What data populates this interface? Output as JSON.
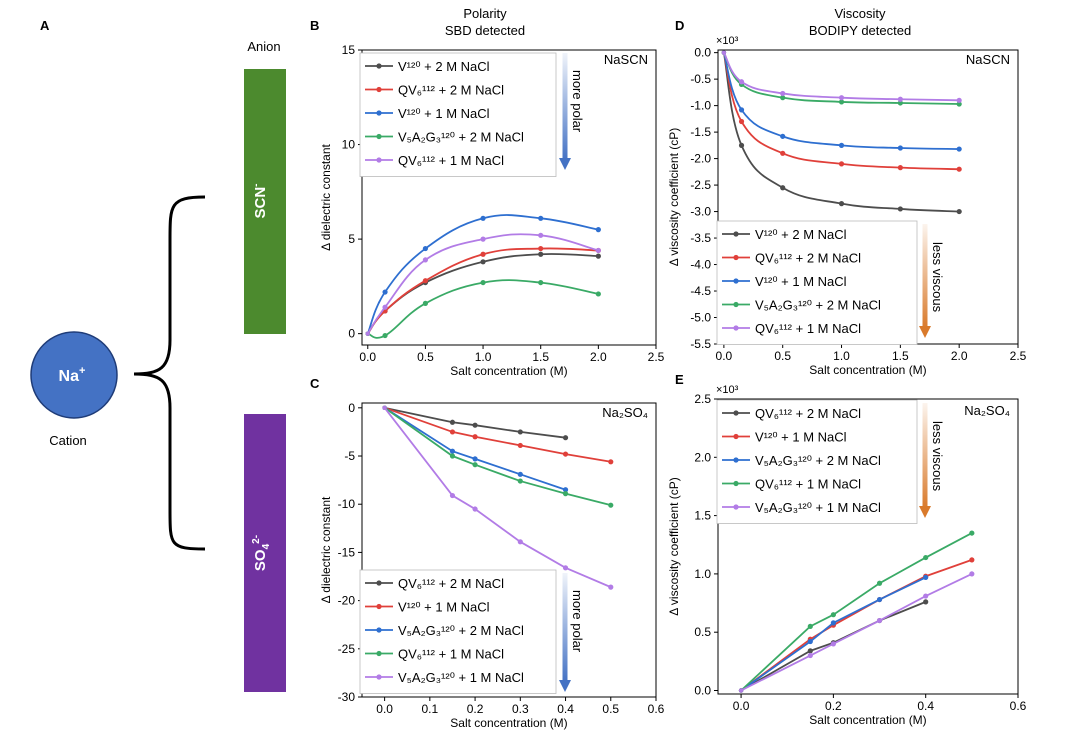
{
  "panel_a": {
    "letter": "A",
    "anion_heading": "Anion",
    "anion_top": "SCN",
    "anion_top_charge": "-",
    "anion_bottom": "SO",
    "anion_bottom_sub": "4",
    "anion_bottom_charge": "2-",
    "cation": "Na",
    "cation_charge": "+",
    "cation_label": "Cation",
    "colors": {
      "top_bar": "#4c8a2e",
      "bottom_bar": "#7032a0",
      "cation": "#4472c4"
    }
  },
  "column_titles": {
    "left": [
      "Polarity",
      "SBD detected"
    ],
    "right": [
      "Viscosity",
      "BODIPY detected"
    ]
  },
  "chart_data": [
    {
      "id": "B",
      "letter": "B",
      "type": "line",
      "smooth": true,
      "xlabel": "Salt concentration (M)",
      "ylabel": "Δ dielectric constant",
      "xlim": [
        -0.05,
        2.5
      ],
      "ylim": [
        -0.6,
        15
      ],
      "xticks": [
        0.0,
        0.5,
        1.0,
        1.5,
        2.0,
        2.5
      ],
      "xtick_labels": [
        "0.0",
        "0.5",
        "1.0",
        "1.5",
        "2.0",
        "2.5"
      ],
      "yticks": [
        0,
        5,
        10,
        15
      ],
      "ytick_labels": [
        "0",
        "5",
        "10",
        "15"
      ],
      "grid": false,
      "annotation": "NaSCN",
      "legend_placement": "top-left",
      "arrow": {
        "label": "more polar",
        "color": "#4472c4"
      },
      "series": [
        {
          "name": "V¹²⁰ + 2 M NaCl",
          "color": "#4d4d4d",
          "x": [
            0,
            0.15,
            0.5,
            1.0,
            1.5,
            2.0
          ],
          "y": [
            0,
            1.2,
            2.7,
            3.8,
            4.2,
            4.1
          ]
        },
        {
          "name": "QV₆¹¹² + 2 M NaCl",
          "color": "#e0403a",
          "x": [
            0,
            0.15,
            0.5,
            1.0,
            1.5,
            2.0
          ],
          "y": [
            0,
            1.2,
            2.8,
            4.2,
            4.5,
            4.4
          ]
        },
        {
          "name": "V¹²⁰ + 1 M NaCl",
          "color": "#2e6fd0",
          "x": [
            0,
            0.15,
            0.5,
            1.0,
            1.5,
            2.0
          ],
          "y": [
            0,
            2.2,
            4.5,
            6.1,
            6.1,
            5.5
          ]
        },
        {
          "name": "V₅A₂G₃¹²⁰ + 2 M NaCl",
          "color": "#3aaa66",
          "x": [
            0,
            0.15,
            0.5,
            1.0,
            1.5,
            2.0
          ],
          "y": [
            0,
            -0.1,
            1.6,
            2.7,
            2.7,
            2.1
          ]
        },
        {
          "name": "QV₆¹¹² + 1 M NaCl",
          "color": "#b27ce6",
          "x": [
            0,
            0.15,
            0.5,
            1.0,
            1.5,
            2.0
          ],
          "y": [
            0,
            1.4,
            3.9,
            5.0,
            5.2,
            4.4
          ]
        }
      ]
    },
    {
      "id": "C",
      "letter": "C",
      "type": "line",
      "smooth": false,
      "xlabel": "Salt concentration (M)",
      "ylabel": "Δ dielectric constant",
      "xlim": [
        -0.05,
        0.6
      ],
      "ylim": [
        -30,
        0.5
      ],
      "xticks": [
        0.0,
        0.1,
        0.2,
        0.3,
        0.4,
        0.5,
        0.6
      ],
      "xtick_labels": [
        "0.0",
        "0.1",
        "0.2",
        "0.3",
        "0.4",
        "0.5",
        "0.6"
      ],
      "yticks": [
        0,
        -5,
        -10,
        -15,
        -20,
        -25,
        -30
      ],
      "ytick_labels": [
        "0",
        "-5",
        "-10",
        "-15",
        "-20",
        "-25",
        "-30"
      ],
      "grid": false,
      "annotation": "Na₂SO₄",
      "legend_placement": "bottom-left",
      "arrow": {
        "label": "more polar",
        "color": "#4472c4"
      },
      "series": [
        {
          "name": "QV₆¹¹² + 2 M NaCl",
          "color": "#4d4d4d",
          "x": [
            0,
            0.15,
            0.2,
            0.3,
            0.4
          ],
          "y": [
            0,
            -1.5,
            -1.8,
            -2.5,
            -3.1
          ]
        },
        {
          "name": "V¹²⁰ + 1 M NaCl",
          "color": "#e0403a",
          "x": [
            0,
            0.15,
            0.2,
            0.3,
            0.4,
            0.5
          ],
          "y": [
            0,
            -2.5,
            -3.0,
            -3.9,
            -4.8,
            -5.6
          ]
        },
        {
          "name": "V₅A₂G₃¹²⁰ + 2 M NaCl",
          "color": "#2e6fd0",
          "x": [
            0,
            0.15,
            0.2,
            0.3,
            0.4
          ],
          "y": [
            0,
            -4.5,
            -5.3,
            -6.9,
            -8.5
          ]
        },
        {
          "name": "QV₆¹¹² + 1 M NaCl",
          "color": "#3aaa66",
          "x": [
            0,
            0.15,
            0.2,
            0.3,
            0.4,
            0.5
          ],
          "y": [
            0,
            -5.0,
            -5.9,
            -7.6,
            -8.9,
            -10.1
          ]
        },
        {
          "name": "V₅A₂G₃¹²⁰ + 1 M NaCl",
          "color": "#b27ce6",
          "x": [
            0,
            0.15,
            0.2,
            0.3,
            0.4,
            0.5
          ],
          "y": [
            0,
            -9.1,
            -10.5,
            -13.9,
            -16.6,
            -18.6
          ]
        }
      ]
    },
    {
      "id": "D",
      "letter": "D",
      "type": "line",
      "smooth": true,
      "xlabel": "Salt concentration (M)",
      "ylabel": "Δ viscosity coefficient (cP)",
      "multiplier": "×10³",
      "xlim": [
        -0.05,
        2.5
      ],
      "ylim": [
        -5.5,
        0.05
      ],
      "xticks": [
        0.0,
        0.5,
        1.0,
        1.5,
        2.0,
        2.5
      ],
      "xtick_labels": [
        "0.0",
        "0.5",
        "1.0",
        "1.5",
        "2.0",
        "2.5"
      ],
      "yticks": [
        0,
        -0.5,
        -1.0,
        -1.5,
        -2.0,
        -2.5,
        -3.0,
        -3.5,
        -4.0,
        -4.5,
        -5.0,
        -5.5
      ],
      "ytick_labels": [
        "0.0",
        "-0.5",
        "-1.0",
        "-1.5",
        "-2.0",
        "-2.5",
        "-3.0",
        "-3.5",
        "-4.0",
        "-4.5",
        "-5.0",
        "-5.5"
      ],
      "grid": false,
      "annotation": "NaSCN",
      "legend_placement": "bottom-left",
      "arrow": {
        "label": "less viscous",
        "color": "#d97a2b"
      },
      "series": [
        {
          "name": "V¹²⁰ + 2 M NaCl",
          "color": "#4d4d4d",
          "x": [
            0,
            0.15,
            0.5,
            1.0,
            1.5,
            2.0
          ],
          "y": [
            0,
            -1.75,
            -2.55,
            -2.85,
            -2.95,
            -3.0
          ]
        },
        {
          "name": "QV₆¹¹² + 2 M NaCl",
          "color": "#e0403a",
          "x": [
            0,
            0.15,
            0.5,
            1.0,
            1.5,
            2.0
          ],
          "y": [
            0,
            -1.3,
            -1.9,
            -2.1,
            -2.17,
            -2.2
          ]
        },
        {
          "name": "V¹²⁰ + 1 M NaCl",
          "color": "#2e6fd0",
          "x": [
            0,
            0.15,
            0.5,
            1.0,
            1.5,
            2.0
          ],
          "y": [
            0,
            -1.08,
            -1.58,
            -1.75,
            -1.8,
            -1.82
          ]
        },
        {
          "name": "V₅A₂G₃¹²⁰ + 2 M NaCl",
          "color": "#3aaa66",
          "x": [
            0,
            0.15,
            0.5,
            1.0,
            1.5,
            2.0
          ],
          "y": [
            0,
            -0.6,
            -0.85,
            -0.93,
            -0.95,
            -0.97
          ]
        },
        {
          "name": "QV₆¹¹² + 1 M NaCl",
          "color": "#b27ce6",
          "x": [
            0,
            0.15,
            0.5,
            1.0,
            1.5,
            2.0
          ],
          "y": [
            0,
            -0.55,
            -0.77,
            -0.85,
            -0.88,
            -0.9
          ]
        }
      ]
    },
    {
      "id": "E",
      "letter": "E",
      "type": "line",
      "smooth": false,
      "xlabel": "Salt concentration (M)",
      "ylabel": "Δ viscosity coefficient (cP)",
      "multiplier": "×10³",
      "xlim": [
        -0.05,
        0.6
      ],
      "ylim": [
        -0.03,
        2.5
      ],
      "xticks": [
        0.0,
        0.2,
        0.4,
        0.6
      ],
      "xtick_labels": [
        "0.0",
        "0.2",
        "0.4",
        "0.6"
      ],
      "yticks": [
        0.0,
        0.5,
        1.0,
        1.5,
        2.0,
        2.5
      ],
      "ytick_labels": [
        "0.0",
        "0.5",
        "1.0",
        "1.5",
        "2.0",
        "2.5"
      ],
      "grid": false,
      "annotation": "Na₂SO₄",
      "legend_placement": "top-left",
      "arrow": {
        "label": "less viscous",
        "color": "#d97a2b"
      },
      "series": [
        {
          "name": "QV₆¹¹² + 2 M NaCl",
          "color": "#4d4d4d",
          "x": [
            0,
            0.15,
            0.2,
            0.3,
            0.4
          ],
          "y": [
            0,
            0.34,
            0.41,
            0.6,
            0.76
          ]
        },
        {
          "name": "V¹²⁰ + 1 M NaCl",
          "color": "#e0403a",
          "x": [
            0,
            0.15,
            0.2,
            0.3,
            0.4,
            0.5
          ],
          "y": [
            0,
            0.44,
            0.56,
            0.78,
            0.98,
            1.12
          ]
        },
        {
          "name": "V₅A₂G₃¹²⁰ + 2 M NaCl",
          "color": "#2e6fd0",
          "x": [
            0,
            0.15,
            0.2,
            0.3,
            0.4
          ],
          "y": [
            0,
            0.42,
            0.58,
            0.78,
            0.97
          ]
        },
        {
          "name": "QV₆¹¹² + 1 M NaCl",
          "color": "#3aaa66",
          "x": [
            0,
            0.15,
            0.2,
            0.3,
            0.4,
            0.5
          ],
          "y": [
            0,
            0.55,
            0.65,
            0.92,
            1.14,
            1.35
          ]
        },
        {
          "name": "V₅A₂G₃¹²⁰ + 1 M NaCl",
          "color": "#b27ce6",
          "x": [
            0,
            0.15,
            0.2,
            0.3,
            0.4,
            0.5
          ],
          "y": [
            0,
            0.3,
            0.4,
            0.6,
            0.81,
            1.0
          ]
        }
      ]
    }
  ]
}
